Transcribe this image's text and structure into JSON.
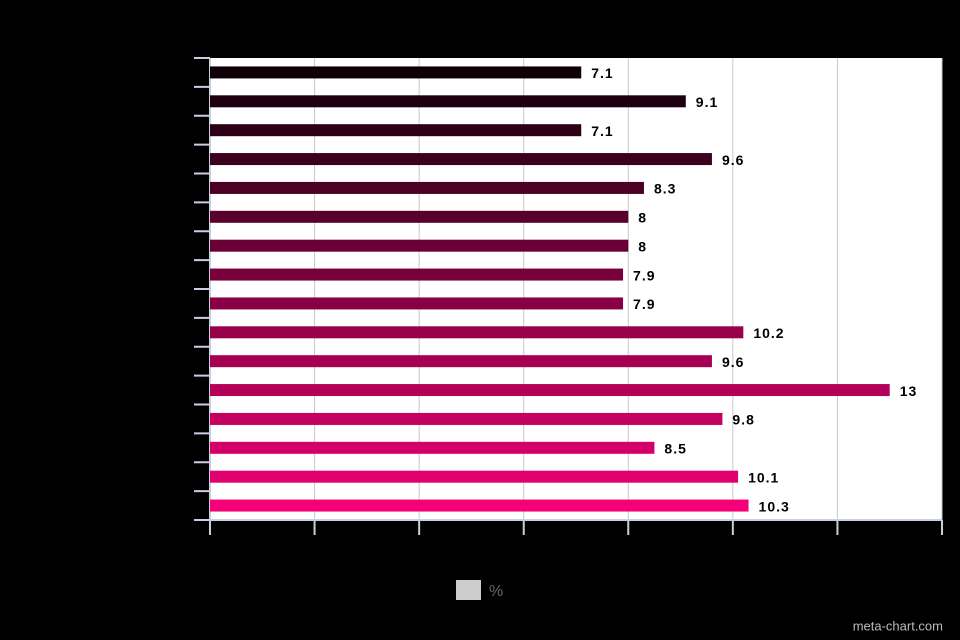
{
  "chart_data": {
    "type": "hbar",
    "categories": [
      null,
      null,
      null,
      null,
      null,
      null,
      null,
      null,
      null,
      null,
      null,
      null,
      null,
      null,
      null,
      null
    ],
    "series": [
      {
        "name": "%",
        "color": "#cccccc",
        "values": [
          7.1,
          9.1,
          7.1,
          9.6,
          8.3,
          8,
          8,
          7.9,
          7.9,
          10.2,
          9.6,
          13,
          9.8,
          8.5,
          10.1,
          10.3
        ],
        "colors": [
          "#0d0006",
          "#1f000f",
          "#2e0017",
          "#3d001e",
          "#4c0026",
          "#5b002d",
          "#6a0035",
          "#7a003c",
          "#880043",
          "#97004b",
          "#a60052",
          "#b5005a",
          "#c40061",
          "#d30069",
          "#e20070",
          "#f60078"
        ]
      }
    ],
    "xlim": [
      0,
      14
    ],
    "xticks": [
      0,
      2,
      4,
      6,
      8,
      10,
      12,
      14
    ],
    "grid": true,
    "legend": "bottom",
    "watermark": "meta-chart.com"
  }
}
